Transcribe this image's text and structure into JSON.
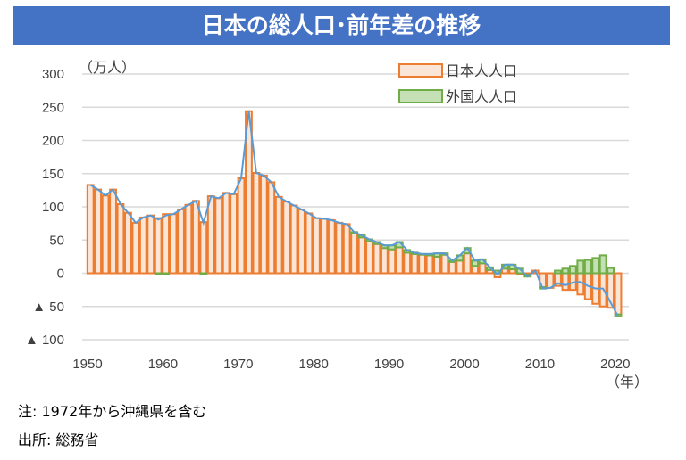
{
  "title": "日本の総人口･前年差の推移",
  "notes": [
    "注: 1972年から沖縄県を含む",
    "出所: 総務省"
  ],
  "chart_data": {
    "type": "bar",
    "stacked": true,
    "ylabel": "（万人）",
    "xlabel": "（年）",
    "ylim": [
      -100,
      300
    ],
    "yticks": [
      300,
      250,
      200,
      150,
      100,
      50,
      0,
      -50,
      -100
    ],
    "ytick_labels": [
      "300",
      "250",
      "200",
      "150",
      "100",
      "50",
      "0",
      "▲ 50",
      "▲ 100"
    ],
    "xticks": [
      1950,
      1960,
      1970,
      1980,
      1990,
      2000,
      2010,
      2020
    ],
    "grid": true,
    "legend_position": "top-right",
    "colors": {
      "japanese_stroke": "#ed7d31",
      "japanese_fill": "#fbe5d6",
      "foreign_stroke": "#70ad47",
      "foreign_fill": "#c5e0b4",
      "total_line": "#5b9bd5",
      "banner": "#4472c4"
    },
    "x_start": 1950,
    "series": [
      {
        "name": "日本人人口",
        "values": [
          133,
          126,
          117,
          126,
          104,
          91,
          76,
          84,
          87,
          83,
          89,
          89,
          96,
          103,
          109,
          77,
          116,
          113,
          121,
          119,
          143,
          244,
          151,
          147,
          137,
          115,
          108,
          102,
          96,
          90,
          83,
          82,
          80,
          76,
          74,
          60,
          54,
          48,
          44,
          38,
          36,
          39,
          31,
          29,
          28,
          27,
          25,
          28,
          17,
          19,
          30,
          11,
          15,
          5,
          -6,
          7,
          6,
          -1,
          -2,
          4,
          -21,
          -22,
          -19,
          -25,
          -25,
          -32,
          -39,
          -46,
          -50,
          -52,
          -62
        ]
      },
      {
        "name": "外国人人口",
        "values": [
          0,
          0,
          0,
          0,
          0,
          0,
          0,
          0,
          0,
          -2,
          -2,
          0,
          0,
          0,
          0,
          -1,
          0,
          0,
          0,
          0,
          0,
          0,
          0,
          0,
          0,
          0,
          0,
          0,
          0,
          0,
          0,
          0,
          0,
          0,
          0,
          2,
          3,
          3,
          3,
          4,
          6,
          8,
          4,
          2,
          1,
          2,
          5,
          2,
          2,
          8,
          8,
          8,
          6,
          4,
          4,
          6,
          7,
          7,
          -3,
          0,
          -2,
          0,
          4,
          7,
          11,
          19,
          20,
          23,
          27,
          8,
          -3
        ]
      }
    ]
  }
}
